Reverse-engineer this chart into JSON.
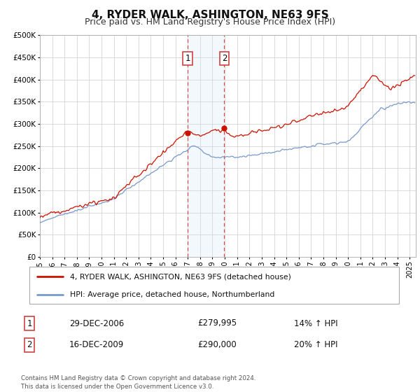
{
  "title": "4, RYDER WALK, ASHINGTON, NE63 9FS",
  "subtitle": "Price paid vs. HM Land Registry's House Price Index (HPI)",
  "ylim": [
    0,
    500000
  ],
  "yticks": [
    0,
    50000,
    100000,
    150000,
    200000,
    250000,
    300000,
    350000,
    400000,
    450000,
    500000
  ],
  "ytick_labels": [
    "£0",
    "£50K",
    "£100K",
    "£150K",
    "£200K",
    "£250K",
    "£300K",
    "£350K",
    "£400K",
    "£450K",
    "£500K"
  ],
  "xlim_start": 1995.0,
  "xlim_end": 2025.5,
  "hpi_color": "#7799cc",
  "price_color": "#cc1100",
  "sale1_date": 2006.99,
  "sale1_price": 279995,
  "sale2_date": 2009.96,
  "sale2_price": 290000,
  "shade_color": "#d0e4f5",
  "vline_color": "#cc3333",
  "legend_line1": "4, RYDER WALK, ASHINGTON, NE63 9FS (detached house)",
  "legend_line2": "HPI: Average price, detached house, Northumberland",
  "table_row1_date": "29-DEC-2006",
  "table_row1_price": "£279,995",
  "table_row1_hpi": "14% ↑ HPI",
  "table_row2_date": "16-DEC-2009",
  "table_row2_price": "£290,000",
  "table_row2_hpi": "20% ↑ HPI",
  "footnote": "Contains HM Land Registry data © Crown copyright and database right 2024.\nThis data is licensed under the Open Government Licence v3.0.",
  "background_color": "#ffffff",
  "grid_color": "#cccccc",
  "title_fontsize": 11,
  "subtitle_fontsize": 9
}
